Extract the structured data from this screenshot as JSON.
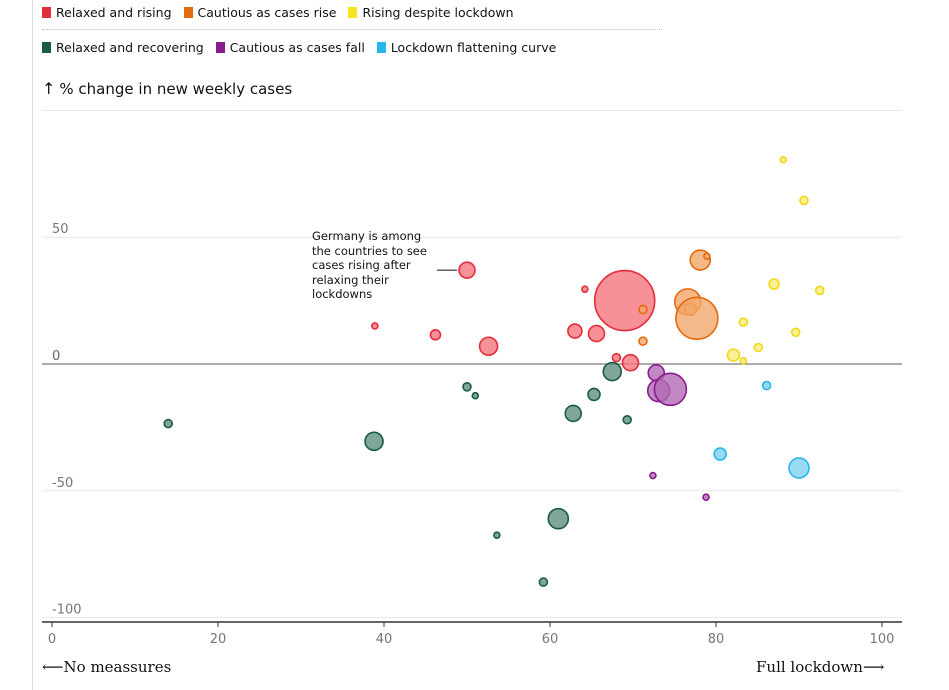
{
  "legend": [
    {
      "label": "Relaxed and rising",
      "color": "#e52c3a"
    },
    {
      "label": "Cautious as cases rise",
      "color": "#e46a0e"
    },
    {
      "label": "Rising despite lockdown",
      "color": "#f8e31f"
    },
    {
      "label": "Relaxed and recovering",
      "color": "#1a5c45"
    },
    {
      "label": "Cautious as cases fall",
      "color": "#8b1a8f"
    },
    {
      "label": "Lockdown flattening curve",
      "color": "#27b7ea"
    }
  ],
  "chart_data": {
    "type": "scatter",
    "ylabel": "% change in new weekly cases",
    "xlim": [
      0,
      100
    ],
    "ylim": [
      -100,
      100
    ],
    "x_ticks": [
      0,
      20,
      40,
      60,
      80,
      100
    ],
    "y_ticks": [
      50,
      0,
      -50,
      -100
    ],
    "x_start_label": "No meassures",
    "x_end_label": "Full lockdown",
    "annotation": {
      "lines": [
        "Germany is among",
        "the countries to see",
        "cases rising after",
        "relaxing their",
        "lockdowns"
      ],
      "x": 50,
      "y": 37
    },
    "series": [
      {
        "name": "Relaxed and rising",
        "fill": "#f4767d",
        "stroke": "#e52c3a",
        "points": [
          {
            "x": 38.9,
            "y": 15,
            "size": 3
          },
          {
            "x": 46.2,
            "y": 11.5,
            "size": 5
          },
          {
            "x": 50,
            "y": 37,
            "size": 8
          },
          {
            "x": 52.6,
            "y": 7,
            "size": 9
          },
          {
            "x": 63,
            "y": 13,
            "size": 7
          },
          {
            "x": 64.2,
            "y": 29.5,
            "size": 3
          },
          {
            "x": 65.6,
            "y": 12,
            "size": 8
          },
          {
            "x": 68,
            "y": 2.5,
            "size": 4
          },
          {
            "x": 69.7,
            "y": 0.5,
            "size": 8
          },
          {
            "x": 69,
            "y": 25,
            "size": 30
          }
        ]
      },
      {
        "name": "Cautious as cases rise",
        "fill": "#f3a86b",
        "stroke": "#e46a0e",
        "points": [
          {
            "x": 71.2,
            "y": 21.5,
            "size": 4
          },
          {
            "x": 71.2,
            "y": 9,
            "size": 4
          },
          {
            "x": 76.6,
            "y": 24.5,
            "size": 13
          },
          {
            "x": 76.9,
            "y": 21.5,
            "size": 6
          },
          {
            "x": 77.7,
            "y": 18,
            "size": 21
          },
          {
            "x": 78.1,
            "y": 41,
            "size": 10
          },
          {
            "x": 78.9,
            "y": 42.5,
            "size": 3
          }
        ]
      },
      {
        "name": "Rising despite lockdown",
        "fill": "#fbee7a",
        "stroke": "#f1d71a",
        "points": [
          {
            "x": 88.1,
            "y": 80.5,
            "size": 3
          },
          {
            "x": 90.6,
            "y": 64.5,
            "size": 4
          },
          {
            "x": 87,
            "y": 31.5,
            "size": 5
          },
          {
            "x": 92.5,
            "y": 29,
            "size": 4
          },
          {
            "x": 83.3,
            "y": 16.5,
            "size": 4
          },
          {
            "x": 89.6,
            "y": 12.5,
            "size": 4
          },
          {
            "x": 85.1,
            "y": 6.5,
            "size": 4
          },
          {
            "x": 82.1,
            "y": 3.5,
            "size": 6
          },
          {
            "x": 83.3,
            "y": 1.3,
            "size": 3
          }
        ]
      },
      {
        "name": "Relaxed and recovering",
        "fill": "#5f907e",
        "stroke": "#1a5c45",
        "points": [
          {
            "x": 14,
            "y": -23.5,
            "size": 4
          },
          {
            "x": 38.8,
            "y": -30.5,
            "size": 9
          },
          {
            "x": 50,
            "y": -9,
            "size": 4
          },
          {
            "x": 51,
            "y": -12.5,
            "size": 3
          },
          {
            "x": 53.6,
            "y": -67.5,
            "size": 3
          },
          {
            "x": 59.2,
            "y": -86,
            "size": 4
          },
          {
            "x": 61,
            "y": -61,
            "size": 10
          },
          {
            "x": 62.8,
            "y": -19.5,
            "size": 8
          },
          {
            "x": 65.3,
            "y": -12,
            "size": 6
          },
          {
            "x": 67.5,
            "y": -3,
            "size": 9
          },
          {
            "x": 69.3,
            "y": -22,
            "size": 4
          }
        ]
      },
      {
        "name": "Cautious as cases fall",
        "fill": "#b26ab5",
        "stroke": "#8b1a8f",
        "points": [
          {
            "x": 72.4,
            "y": -44,
            "size": 3
          },
          {
            "x": 72.8,
            "y": -3.5,
            "size": 8
          },
          {
            "x": 73.1,
            "y": -10.5,
            "size": 11
          },
          {
            "x": 74.5,
            "y": -10,
            "size": 16
          },
          {
            "x": 78.8,
            "y": -52.5,
            "size": 3
          }
        ]
      },
      {
        "name": "Lockdown flattening curve",
        "fill": "#7fd1f0",
        "stroke": "#27b7ea",
        "points": [
          {
            "x": 80.5,
            "y": -35.5,
            "size": 6
          },
          {
            "x": 86.1,
            "y": -8.5,
            "size": 4
          },
          {
            "x": 90,
            "y": -41,
            "size": 10
          }
        ]
      }
    ]
  }
}
